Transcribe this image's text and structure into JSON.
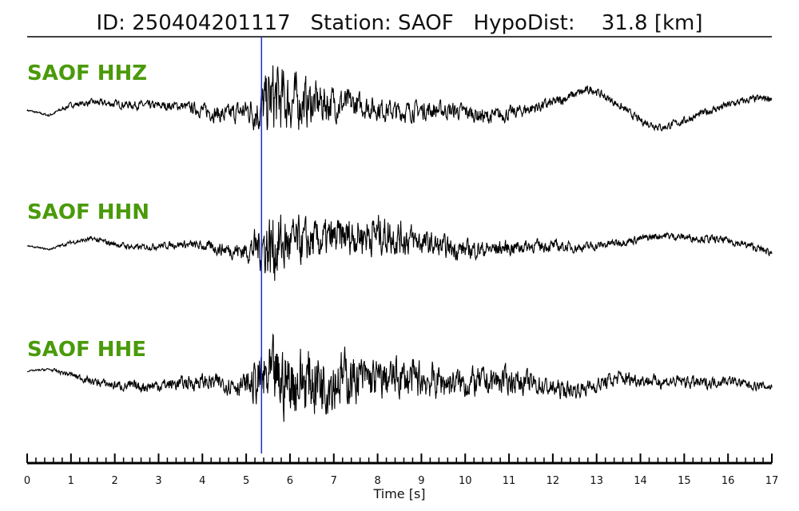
{
  "header": {
    "id_label": "ID:",
    "id_value": "250404201117",
    "station_label": "Station:",
    "station_value": "SAOF",
    "dist_label": "HypoDist:",
    "dist_value": "31.8 [km]"
  },
  "colors": {
    "trace": "#000000",
    "pick": "#1f2bd6",
    "label": "#4a9a0a"
  },
  "chart_data": {
    "type": "line",
    "title": "ID: 250404201117   Station: SAOF   HypoDist:    31.8 [km]",
    "xlabel": "Time [s]",
    "ylabel": "",
    "xlim": [
      0,
      17
    ],
    "x_ticks": [
      "0",
      "1",
      "2",
      "3",
      "4",
      "5",
      "6",
      "7",
      "8",
      "9",
      "10",
      "11",
      "12",
      "13",
      "14",
      "15",
      "16",
      "17"
    ],
    "grid": false,
    "pick_time": 5.35,
    "series": [
      {
        "name": "SAOF HHZ",
        "envelope": [
          [
            0.0,
            0.0,
            0.3
          ],
          [
            0.5,
            -0.3,
            0.4
          ],
          [
            1.0,
            0.3,
            0.8
          ],
          [
            1.5,
            0.45,
            1.0
          ],
          [
            2.0,
            0.35,
            1.2
          ],
          [
            2.5,
            0.3,
            1.3
          ],
          [
            3.0,
            0.25,
            1.4
          ],
          [
            3.5,
            0.25,
            1.5
          ],
          [
            4.0,
            0.0,
            2.2
          ],
          [
            4.5,
            -0.3,
            2.8
          ],
          [
            5.0,
            0.0,
            3.5
          ],
          [
            5.3,
            0.0,
            7.0
          ],
          [
            5.6,
            0.6,
            12.0
          ],
          [
            6.0,
            0.5,
            9.0
          ],
          [
            6.5,
            0.4,
            7.0
          ],
          [
            7.0,
            0.4,
            5.5
          ],
          [
            7.5,
            0.3,
            4.0
          ],
          [
            8.0,
            0.1,
            3.5
          ],
          [
            8.5,
            -0.1,
            3.2
          ],
          [
            9.0,
            0.0,
            3.0
          ],
          [
            9.5,
            0.0,
            2.8
          ],
          [
            10.0,
            -0.1,
            2.6
          ],
          [
            10.5,
            -0.4,
            2.5
          ],
          [
            11.0,
            -0.2,
            2.2
          ],
          [
            11.5,
            0.1,
            2.0
          ],
          [
            12.0,
            0.4,
            1.8
          ],
          [
            12.5,
            0.9,
            1.5
          ],
          [
            12.9,
            1.2,
            1.3
          ],
          [
            13.5,
            0.3,
            1.2
          ],
          [
            14.0,
            -0.6,
            1.2
          ],
          [
            14.5,
            -1.0,
            1.2
          ],
          [
            15.0,
            -0.6,
            1.2
          ],
          [
            15.5,
            -0.1,
            1.2
          ],
          [
            16.0,
            0.3,
            1.2
          ],
          [
            16.5,
            0.6,
            1.2
          ],
          [
            17.0,
            0.7,
            1.2
          ]
        ]
      },
      {
        "name": "SAOF HHN",
        "envelope": [
          [
            0.0,
            0.0,
            0.2
          ],
          [
            0.5,
            -0.2,
            0.3
          ],
          [
            1.0,
            0.2,
            0.6
          ],
          [
            1.5,
            0.4,
            0.8
          ],
          [
            2.0,
            0.1,
            0.9
          ],
          [
            2.5,
            -0.1,
            1.0
          ],
          [
            3.0,
            0.0,
            1.0
          ],
          [
            3.5,
            0.1,
            1.2
          ],
          [
            4.0,
            0.0,
            1.5
          ],
          [
            4.5,
            -0.2,
            2.2
          ],
          [
            5.0,
            -0.3,
            3.0
          ],
          [
            5.3,
            0.0,
            7.0
          ],
          [
            5.6,
            0.0,
            12.0
          ],
          [
            6.0,
            0.1,
            8.0
          ],
          [
            6.5,
            0.2,
            6.5
          ],
          [
            7.0,
            0.4,
            6.0
          ],
          [
            7.5,
            0.6,
            6.0
          ],
          [
            8.0,
            0.7,
            6.5
          ],
          [
            8.5,
            0.5,
            5.5
          ],
          [
            9.0,
            0.2,
            4.0
          ],
          [
            9.5,
            -0.1,
            3.5
          ],
          [
            10.0,
            -0.2,
            3.0
          ],
          [
            10.5,
            -0.2,
            2.6
          ],
          [
            11.0,
            -0.1,
            2.4
          ],
          [
            11.5,
            0.0,
            2.0
          ],
          [
            12.0,
            0.0,
            1.8
          ],
          [
            12.5,
            -0.1,
            1.5
          ],
          [
            13.0,
            0.0,
            1.4
          ],
          [
            13.5,
            0.2,
            1.3
          ],
          [
            14.0,
            0.4,
            1.2
          ],
          [
            14.5,
            0.6,
            1.2
          ],
          [
            15.0,
            0.5,
            1.2
          ],
          [
            15.5,
            0.4,
            1.2
          ],
          [
            16.0,
            0.3,
            1.2
          ],
          [
            16.5,
            0.0,
            1.2
          ],
          [
            17.0,
            -0.4,
            1.2
          ]
        ]
      },
      {
        "name": "SAOF HHE",
        "envelope": [
          [
            0.0,
            0.6,
            0.2
          ],
          [
            0.5,
            0.7,
            0.4
          ],
          [
            1.0,
            0.4,
            0.9
          ],
          [
            1.5,
            0.0,
            1.2
          ],
          [
            2.0,
            -0.2,
            1.5
          ],
          [
            2.5,
            -0.3,
            1.8
          ],
          [
            3.0,
            -0.2,
            2.0
          ],
          [
            3.5,
            -0.1,
            2.2
          ],
          [
            4.0,
            0.0,
            2.5
          ],
          [
            4.5,
            -0.1,
            3.0
          ],
          [
            5.0,
            -0.2,
            3.5
          ],
          [
            5.3,
            0.0,
            9.0
          ],
          [
            5.6,
            0.0,
            12.0
          ],
          [
            6.0,
            0.0,
            11.0
          ],
          [
            6.5,
            0.1,
            11.0
          ],
          [
            7.0,
            0.2,
            10.0
          ],
          [
            7.5,
            0.2,
            7.5
          ],
          [
            8.0,
            0.1,
            6.5
          ],
          [
            8.5,
            0.2,
            6.0
          ],
          [
            9.0,
            0.1,
            6.0
          ],
          [
            9.5,
            0.0,
            5.0
          ],
          [
            10.0,
            -0.1,
            4.5
          ],
          [
            10.5,
            0.0,
            4.5
          ],
          [
            11.0,
            0.1,
            4.0
          ],
          [
            11.5,
            -0.1,
            3.5
          ],
          [
            12.0,
            -0.4,
            3.0
          ],
          [
            12.5,
            -0.5,
            2.5
          ],
          [
            13.0,
            -0.2,
            2.5
          ],
          [
            13.5,
            0.2,
            2.5
          ],
          [
            14.0,
            0.1,
            2.0
          ],
          [
            14.5,
            0.0,
            2.0
          ],
          [
            15.0,
            0.0,
            2.0
          ],
          [
            15.5,
            -0.1,
            1.8
          ],
          [
            16.0,
            0.1,
            1.6
          ],
          [
            16.5,
            -0.2,
            1.4
          ],
          [
            17.0,
            -0.3,
            1.4
          ]
        ]
      }
    ]
  }
}
